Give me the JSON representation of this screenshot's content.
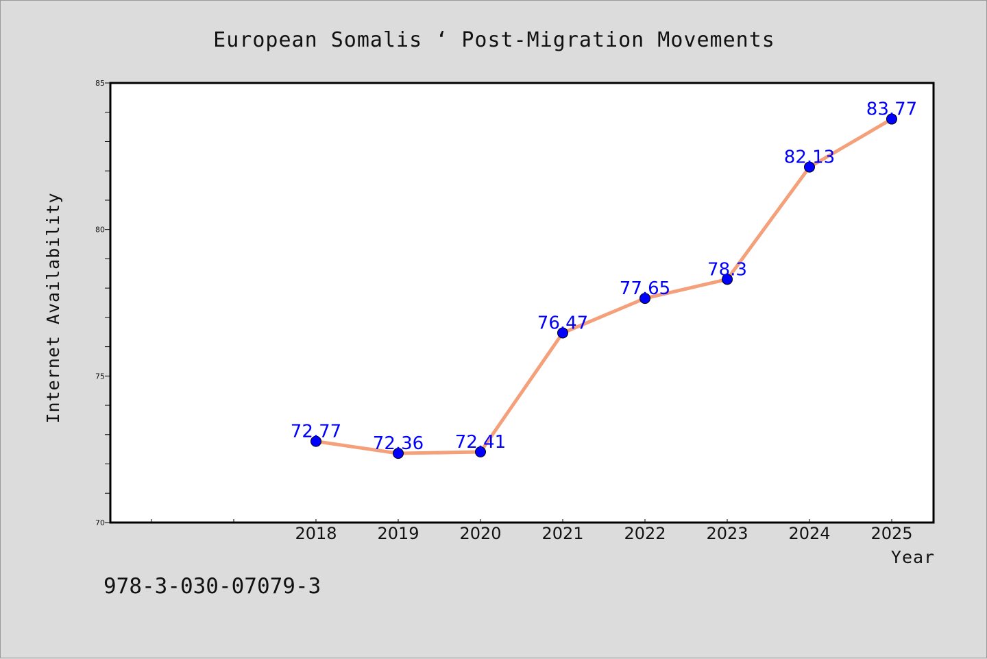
{
  "isbn_text": "978-3-030-07079-3",
  "chart_data": {
    "type": "line",
    "title": "European Somalis ‘ Post-Migration Movements",
    "xlabel": "Year",
    "ylabel": "Internet Availability",
    "x": [
      "2018",
      "2019",
      "2020",
      "2021",
      "2022",
      "2023",
      "2024",
      "2025"
    ],
    "series": [
      {
        "values": [
          72.77,
          72.36,
          72.41,
          76.47,
          77.65,
          78.3,
          82.13,
          83.77
        ]
      }
    ],
    "data_labels": [
      "72.77",
      "72.36",
      "72.41",
      "76.47",
      "77.65",
      "78.3",
      "82.13",
      "83.77"
    ],
    "ylim": [
      70,
      85
    ],
    "yticks": [
      70,
      75,
      80,
      85
    ],
    "grid": false,
    "line_color": "#f4a07a",
    "marker_color": "#0000ff",
    "label_color": "#0000ff",
    "background_color": "#dcdcdc"
  }
}
